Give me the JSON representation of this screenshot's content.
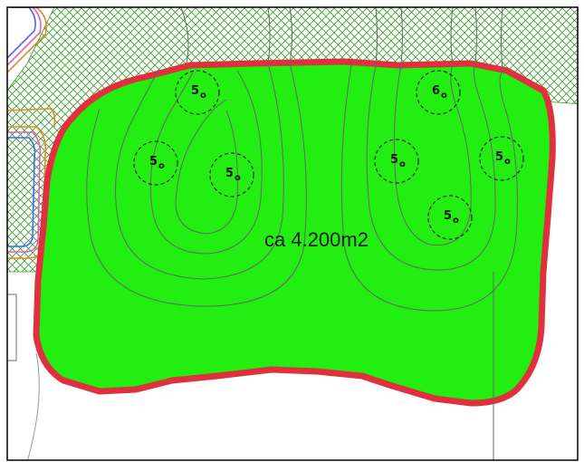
{
  "map": {
    "area_label": "ca 4.200m2",
    "colors": {
      "area_fill": "#22ee11",
      "area_outline": "#e0303d",
      "hatch": "#3a9b2a",
      "contour": "#666666",
      "road_edge_orange": "#e08a2a",
      "road_edge_blue": "#4466ff",
      "road_edge_pink": "#e060c0",
      "frame": "#000000"
    },
    "spot_heights": [
      {
        "label": "5",
        "sub": "o"
      },
      {
        "label": "6",
        "sub": "o"
      },
      {
        "label": "5",
        "sub": "o"
      },
      {
        "label": "5",
        "sub": "o"
      },
      {
        "label": "5",
        "sub": "o"
      },
      {
        "label": "5",
        "sub": "o"
      },
      {
        "label": "5",
        "sub": "o"
      }
    ]
  }
}
